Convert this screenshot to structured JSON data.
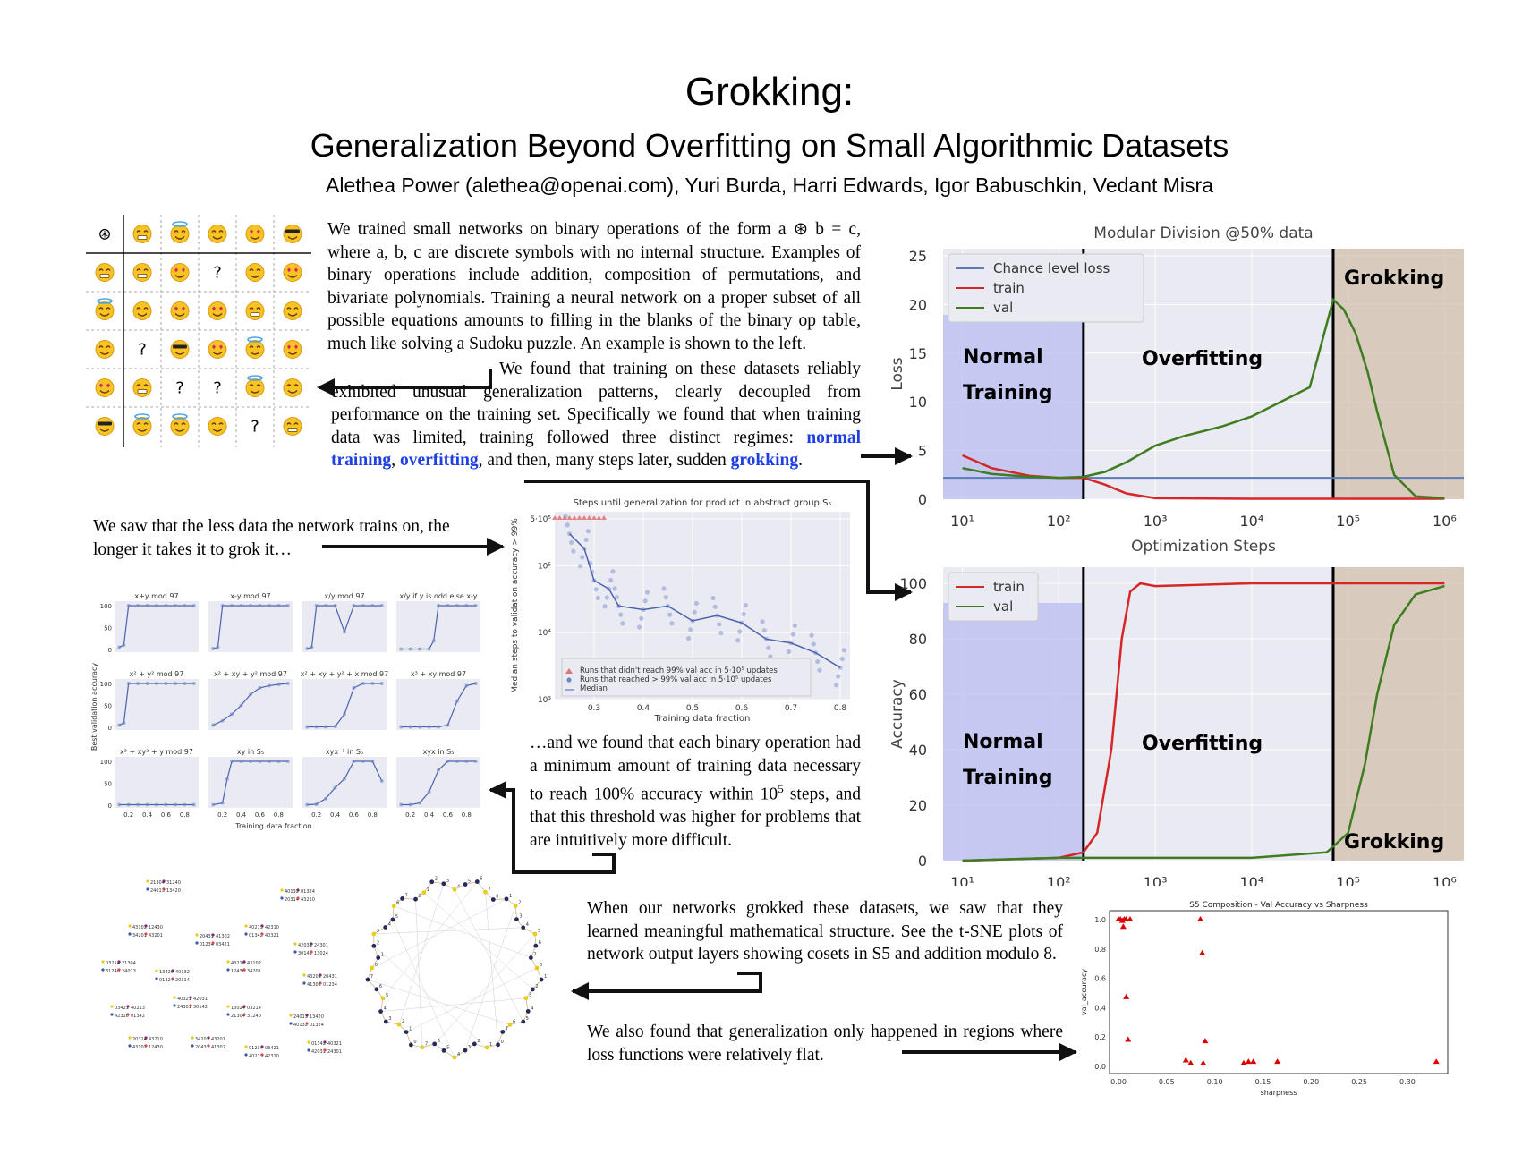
{
  "header": {
    "title": "Grokking:",
    "subtitle": "Generalization Beyond Overfitting on Small Algorithmic Datasets",
    "authors": "Alethea Power (alethea@openai.com), Yuri Burda, Harri Edwards, Igor Babuschkin, Vedant Misra"
  },
  "op_table": {
    "header_symbol": "⊛",
    "unknown": "?"
  },
  "paragraphs": {
    "intro_a": "We trained small networks on binary operations of the form a ⊛ b = c, where a, b, c are discrete symbols with no internal structure. Examples of binary operations include addition, composition of permutations, and bivariate polynomials. Training a neural network on a proper subset of all possible equations amounts to filling in the blanks of the binary op table, much like solving a Sudoku puzzle. An example is shown to the left.",
    "intro_b": "We found that training on these datasets reliably exhibited unusual generalization patterns, clearly decoupled from performance on the training set. Specifically we found that when training data was limited, training followed three distinct regimes:",
    "regime_1": "normal training",
    "regime_2": "overfitting",
    "regime_sep": ", ",
    "regime_then": ", and then, many steps later, sudden",
    "regime_3": "grokking",
    "regime_end": ".",
    "less_data": "We saw that the less data the network trains on, the longer it takes it to grok it…",
    "min_data_a": "…and we found that each binary operation had a minimum amount of training data necessary to reach 100% accuracy within 10",
    "min_data_exp": "5",
    "min_data_b": " steps, and that this threshold was higher for problems that are intuitively more difficult.",
    "structure": "When our networks grokked these datasets, we saw that they learned meaningful mathematical structure. See the t-SNE plots of network output layers showing cosets in S5 and addition modulo 8.",
    "flat": "We also found that generalization only happened in regions where loss functions were relatively flat."
  },
  "chart_data": [
    {
      "id": "loss",
      "type": "line",
      "title": "Modular Division @50% data",
      "xlabel": "Optimization Steps",
      "ylabel": "Loss",
      "xscale": "log",
      "xlim": [
        10,
        1000000
      ],
      "ylim": [
        0,
        25
      ],
      "yticks": [
        "0",
        "5",
        "10",
        "15",
        "20",
        "25"
      ],
      "xticks": [
        "10¹",
        "10²",
        "10³",
        "10⁴",
        "10⁵",
        "10⁶"
      ],
      "legend": [
        "Chance level loss",
        "train",
        "val"
      ],
      "regions": [
        "Normal",
        "Training",
        "Overfitting",
        "Grokking"
      ],
      "chance_level": 2.2,
      "series": [
        {
          "name": "train",
          "color": "#d62728",
          "x": [
            10,
            20,
            50,
            100,
            180,
            300,
            500,
            1000,
            10000,
            100000,
            1000000
          ],
          "y": [
            4.5,
            3.2,
            2.4,
            2.2,
            2.2,
            1.5,
            0.6,
            0.1,
            0.05,
            0.05,
            0.05
          ]
        },
        {
          "name": "val",
          "color": "#3d7d1f",
          "x": [
            10,
            20,
            50,
            100,
            180,
            300,
            500,
            1000,
            2000,
            5000,
            10000,
            20000,
            40000,
            70000,
            90000,
            120000,
            160000,
            200000,
            300000,
            500000,
            1000000
          ],
          "y": [
            3.2,
            2.6,
            2.3,
            2.2,
            2.3,
            2.8,
            3.8,
            5.5,
            6.5,
            7.5,
            8.5,
            10.0,
            11.5,
            20.5,
            19.5,
            17.0,
            13.0,
            9.0,
            2.5,
            0.3,
            0.1
          ]
        }
      ]
    },
    {
      "id": "accuracy",
      "type": "line",
      "title": "",
      "xlabel": "",
      "ylabel": "Accuracy",
      "xscale": "log",
      "xlim": [
        10,
        1000000
      ],
      "ylim": [
        0,
        100
      ],
      "yticks": [
        "0",
        "20",
        "40",
        "60",
        "80",
        "100"
      ],
      "xticks": [
        "10¹",
        "10²",
        "10³",
        "10⁴",
        "10⁵",
        "10⁶"
      ],
      "legend": [
        "train",
        "val"
      ],
      "regions": [
        "Normal",
        "Training",
        "Overfitting",
        "Grokking"
      ],
      "series": [
        {
          "name": "train",
          "color": "#d62728",
          "x": [
            10,
            100,
            180,
            250,
            350,
            450,
            550,
            700,
            1000,
            10000,
            1000000
          ],
          "y": [
            0,
            1,
            3,
            10,
            40,
            80,
            97,
            100,
            99,
            100,
            100
          ]
        },
        {
          "name": "val",
          "color": "#3d7d1f",
          "x": [
            10,
            100,
            1000,
            10000,
            60000,
            100000,
            150000,
            200000,
            300000,
            500000,
            1000000
          ],
          "y": [
            0,
            1,
            1,
            1,
            3,
            10,
            35,
            60,
            85,
            96,
            99
          ]
        }
      ]
    },
    {
      "id": "steps",
      "type": "scatter",
      "title": "Steps until generalization for product in abstract group S₅",
      "xlabel": "Training data fraction",
      "ylabel": "Median steps to validation accuracy > 99%",
      "xticks": [
        "0.3",
        "0.4",
        "0.5",
        "0.6",
        "0.7",
        "0.8"
      ],
      "yticks": [
        "5·10⁵",
        "10⁵",
        "10⁴",
        "10³"
      ],
      "legend": [
        "Runs that didn't reach 99% val acc in 5·10⁵ updates",
        "Runs that reached > 99% val acc in 5·10⁵ updates",
        "Median"
      ],
      "median": {
        "x": [
          0.25,
          0.28,
          0.3,
          0.33,
          0.35,
          0.4,
          0.45,
          0.5,
          0.55,
          0.6,
          0.65,
          0.7,
          0.75,
          0.8
        ],
        "y": [
          300000,
          180000,
          60000,
          45000,
          25000,
          22000,
          25000,
          15000,
          18000,
          14000,
          8000,
          7000,
          5000,
          3000
        ]
      }
    },
    {
      "id": "small_multiples",
      "type": "scatter",
      "xlabel": "Training data fraction",
      "ylabel": "Best validation accuracy",
      "yticks": [
        "0",
        "50",
        "100"
      ],
      "xticks": [
        "0.2",
        "0.4",
        "0.6",
        "0.8"
      ],
      "panels": [
        {
          "title": "x+y mod 97",
          "x": [
            0.1,
            0.15,
            0.2,
            0.3,
            0.4,
            0.5,
            0.6,
            0.7,
            0.8,
            0.9
          ],
          "y": [
            5,
            10,
            100,
            100,
            100,
            100,
            100,
            100,
            100,
            100
          ]
        },
        {
          "title": "x-y mod 97",
          "x": [
            0.1,
            0.15,
            0.2,
            0.3,
            0.4,
            0.5,
            0.6,
            0.7,
            0.8,
            0.9
          ],
          "y": [
            2,
            5,
            100,
            100,
            100,
            100,
            100,
            100,
            100,
            100
          ]
        },
        {
          "title": "x/y mod 97",
          "x": [
            0.1,
            0.15,
            0.2,
            0.3,
            0.4,
            0.5,
            0.6,
            0.7,
            0.8,
            0.9
          ],
          "y": [
            2,
            5,
            100,
            100,
            100,
            40,
            100,
            100,
            100,
            100
          ]
        },
        {
          "title": "x/y if y is odd else x-y",
          "x": [
            0.1,
            0.2,
            0.3,
            0.4,
            0.45,
            0.5,
            0.6,
            0.7,
            0.8,
            0.9
          ],
          "y": [
            1,
            1,
            1,
            1,
            20,
            100,
            100,
            100,
            100,
            100
          ]
        },
        {
          "title": "x² + y² mod 97",
          "x": [
            0.1,
            0.15,
            0.2,
            0.3,
            0.4,
            0.5,
            0.6,
            0.7,
            0.8,
            0.9
          ],
          "y": [
            5,
            10,
            100,
            100,
            100,
            100,
            100,
            100,
            100,
            100
          ]
        },
        {
          "title": "x² + xy + y² mod 97",
          "x": [
            0.1,
            0.2,
            0.3,
            0.4,
            0.5,
            0.6,
            0.7,
            0.8,
            0.9
          ],
          "y": [
            5,
            15,
            30,
            50,
            75,
            90,
            95,
            98,
            100
          ]
        },
        {
          "title": "x² + xy + y² + x mod 97",
          "x": [
            0.1,
            0.2,
            0.3,
            0.4,
            0.5,
            0.6,
            0.7,
            0.8,
            0.9
          ],
          "y": [
            1,
            1,
            1,
            2,
            30,
            90,
            100,
            100,
            100
          ]
        },
        {
          "title": "x³ + xy mod 97",
          "x": [
            0.1,
            0.2,
            0.3,
            0.4,
            0.5,
            0.6,
            0.7,
            0.8,
            0.9
          ],
          "y": [
            1,
            1,
            1,
            1,
            1,
            5,
            60,
            95,
            100
          ]
        },
        {
          "title": "x³ + xy² + y mod 97",
          "x": [
            0.1,
            0.2,
            0.3,
            0.4,
            0.5,
            0.6,
            0.7,
            0.8,
            0.9
          ],
          "y": [
            1,
            1,
            1,
            1,
            1,
            1,
            1,
            1,
            1
          ]
        },
        {
          "title": "xy in S₅",
          "x": [
            0.1,
            0.2,
            0.25,
            0.3,
            0.4,
            0.5,
            0.6,
            0.7,
            0.8,
            0.9
          ],
          "y": [
            1,
            5,
            60,
            100,
            100,
            100,
            100,
            100,
            100,
            100
          ]
        },
        {
          "title": "xyx⁻¹ in S₅",
          "x": [
            0.1,
            0.2,
            0.3,
            0.4,
            0.5,
            0.6,
            0.7,
            0.8,
            0.9
          ],
          "y": [
            1,
            2,
            15,
            40,
            60,
            100,
            100,
            100,
            55
          ]
        },
        {
          "title": "xyx in S₅",
          "x": [
            0.1,
            0.2,
            0.3,
            0.4,
            0.5,
            0.6,
            0.7,
            0.8,
            0.9
          ],
          "y": [
            1,
            1,
            5,
            30,
            80,
            100,
            100,
            100,
            100
          ]
        }
      ]
    },
    {
      "id": "sharpness",
      "type": "scatter",
      "title": "S5 Composition - Val Accuracy vs Sharpness",
      "xlabel": "sharpness",
      "ylabel": "val_accuracy",
      "xticks": [
        "0.00",
        "0.05",
        "0.10",
        "0.15",
        "0.20",
        "0.25",
        "0.30"
      ],
      "yticks": [
        "0.0",
        "0.2",
        "0.4",
        "0.6",
        "0.8",
        "1.0"
      ],
      "x": [
        0.0,
        0.002,
        0.004,
        0.006,
        0.008,
        0.012,
        0.005,
        0.008,
        0.01,
        0.085,
        0.087,
        0.09,
        0.07,
        0.075,
        0.088,
        0.13,
        0.135,
        0.14,
        0.165,
        0.33
      ],
      "y": [
        1.0,
        1.0,
        0.99,
        1.0,
        1.0,
        1.0,
        0.95,
        0.47,
        0.18,
        1.0,
        0.77,
        0.17,
        0.04,
        0.02,
        0.02,
        0.02,
        0.03,
        0.03,
        0.03,
        0.03
      ]
    },
    {
      "id": "tsne_s5",
      "type": "scatter",
      "labels": [
        "21304",
        "31240",
        "24013",
        "13420",
        "40132",
        "01324",
        "20314",
        "43210",
        "43102",
        "12430",
        "34201",
        "43201",
        "20431",
        "41302",
        "01234",
        "03421",
        "40213",
        "42310",
        "01342",
        "40321",
        "42031",
        "24301",
        "30142",
        "13024",
        "03214"
      ]
    },
    {
      "id": "tsne_mod8",
      "type": "scatter",
      "labels": [
        "0",
        "1",
        "2",
        "3",
        "4",
        "5",
        "6",
        "7"
      ]
    }
  ]
}
